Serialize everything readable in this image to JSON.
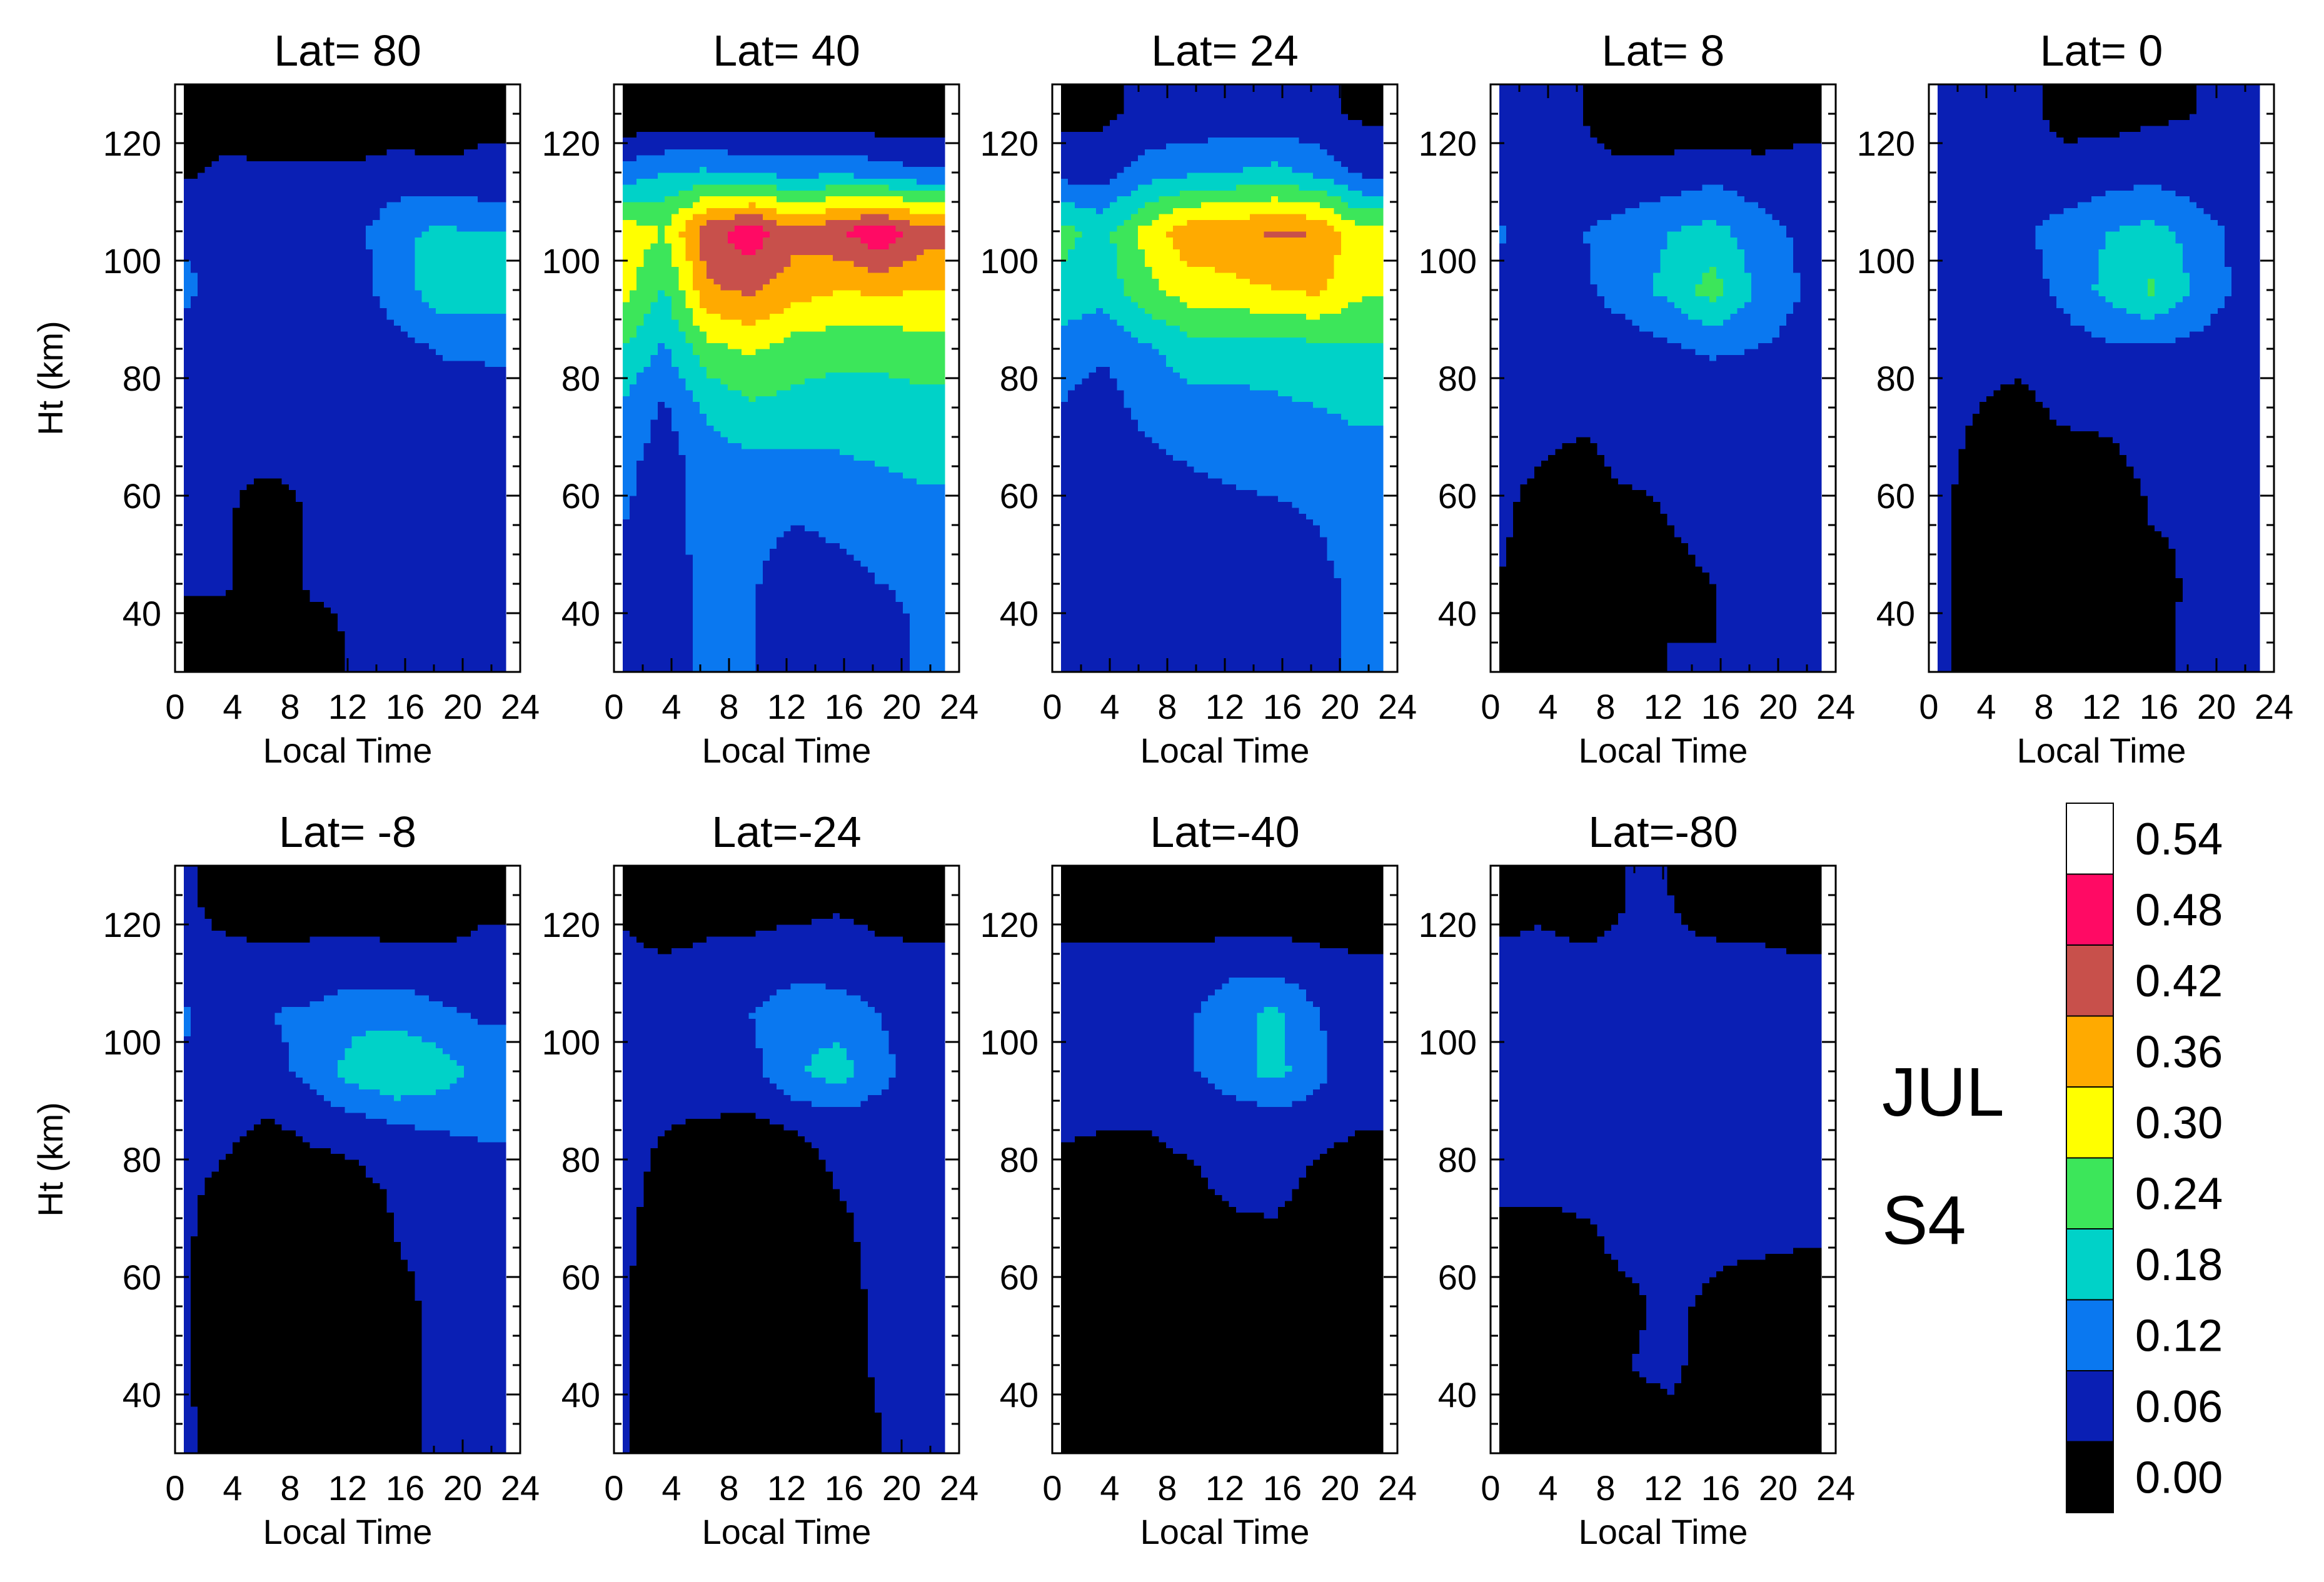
{
  "chart_data": {
    "type": "heatmap",
    "month_label": "JUL",
    "quantity_label": "S4",
    "xlabel": "Local Time",
    "ylabel": "Ht (km)",
    "xticks": [
      0,
      4,
      8,
      12,
      16,
      20,
      24
    ],
    "yticks": [
      40,
      60,
      80,
      100,
      120
    ],
    "xlim": [
      0,
      24
    ],
    "ylim": [
      30,
      130
    ],
    "x": [
      0.5,
      3.5,
      6.5,
      9.5,
      12.5,
      15.5,
      18.5,
      21.5
    ],
    "y": [
      35,
      45,
      55,
      65,
      75,
      85,
      95,
      105,
      115,
      125
    ],
    "colorbar": {
      "levels": [
        0.0,
        0.06,
        0.12,
        0.18,
        0.24,
        0.3,
        0.36,
        0.42,
        0.48,
        0.54
      ],
      "labels": [
        "0.00",
        "0.06",
        "0.12",
        "0.18",
        "0.24",
        "0.30",
        "0.36",
        "0.42",
        "0.48",
        "0.54"
      ],
      "colors": [
        "#000000",
        "#0a1fb4",
        "#0a78f0",
        "#00d2c8",
        "#3ce65a",
        "#ffff00",
        "#ffaa00",
        "#c8504b",
        "#ff0a64",
        "#ffffff"
      ]
    },
    "panels": [
      {
        "title": "Lat= 80",
        "z": [
          [
            0.01,
            0.03,
            0.01,
            0.03,
            0.07,
            0.07,
            0.07,
            0.07
          ],
          [
            0.07,
            0.07,
            0.01,
            0.07,
            0.07,
            0.07,
            0.07,
            0.07
          ],
          [
            0.07,
            0.07,
            0.01,
            0.07,
            0.07,
            0.07,
            0.07,
            0.07
          ],
          [
            0.07,
            0.07,
            0.07,
            0.07,
            0.07,
            0.07,
            0.07,
            0.07
          ],
          [
            0.07,
            0.07,
            0.07,
            0.07,
            0.07,
            0.07,
            0.07,
            0.09
          ],
          [
            0.08,
            0.07,
            0.07,
            0.07,
            0.07,
            0.09,
            0.13,
            0.13
          ],
          [
            0.14,
            0.09,
            0.07,
            0.07,
            0.09,
            0.16,
            0.21,
            0.22
          ],
          [
            0.11,
            0.08,
            0.07,
            0.07,
            0.1,
            0.17,
            0.19,
            0.18
          ],
          [
            0.05,
            0.07,
            0.07,
            0.07,
            0.07,
            0.08,
            0.07,
            0.07
          ],
          [
            0.01,
            0.04,
            0.02,
            0.01,
            0.02,
            0.03,
            0.03,
            0.05
          ]
        ]
      },
      {
        "title": "Lat= 40",
        "z": [
          [
            0.12,
            0.1,
            0.13,
            0.13,
            0.07,
            0.08,
            0.09,
            0.13
          ],
          [
            0.12,
            0.1,
            0.13,
            0.13,
            0.08,
            0.1,
            0.12,
            0.13
          ],
          [
            0.12,
            0.1,
            0.14,
            0.14,
            0.12,
            0.13,
            0.14,
            0.16
          ],
          [
            0.14,
            0.09,
            0.15,
            0.16,
            0.16,
            0.17,
            0.18,
            0.19
          ],
          [
            0.17,
            0.11,
            0.19,
            0.23,
            0.22,
            0.21,
            0.21,
            0.22
          ],
          [
            0.24,
            0.17,
            0.28,
            0.31,
            0.27,
            0.26,
            0.26,
            0.27
          ],
          [
            0.33,
            0.23,
            0.41,
            0.43,
            0.39,
            0.36,
            0.37,
            0.36
          ],
          [
            0.34,
            0.3,
            0.46,
            0.52,
            0.44,
            0.47,
            0.53,
            0.45
          ],
          [
            0.14,
            0.18,
            0.19,
            0.17,
            0.16,
            0.17,
            0.15,
            0.13
          ],
          [
            0.01,
            0.01,
            0.01,
            0.01,
            0.01,
            0.01,
            0.01,
            0.01
          ]
        ]
      },
      {
        "title": "Lat= 24",
        "z": [
          [
            0.08,
            0.08,
            0.1,
            0.11,
            0.08,
            0.08,
            0.11,
            0.13
          ],
          [
            0.07,
            0.08,
            0.09,
            0.11,
            0.07,
            0.07,
            0.11,
            0.13
          ],
          [
            0.07,
            0.08,
            0.09,
            0.09,
            0.1,
            0.1,
            0.12,
            0.14
          ],
          [
            0.08,
            0.08,
            0.1,
            0.12,
            0.13,
            0.14,
            0.15,
            0.16
          ],
          [
            0.12,
            0.09,
            0.14,
            0.16,
            0.16,
            0.17,
            0.18,
            0.19
          ],
          [
            0.15,
            0.13,
            0.17,
            0.21,
            0.21,
            0.21,
            0.22,
            0.23
          ],
          [
            0.23,
            0.2,
            0.28,
            0.33,
            0.34,
            0.36,
            0.37,
            0.31
          ],
          [
            0.26,
            0.22,
            0.32,
            0.4,
            0.41,
            0.43,
            0.42,
            0.31
          ],
          [
            0.1,
            0.09,
            0.15,
            0.17,
            0.18,
            0.2,
            0.16,
            0.11
          ],
          [
            0.04,
            0.05,
            0.07,
            0.07,
            0.08,
            0.07,
            0.07,
            0.05
          ]
        ]
      },
      {
        "title": "Lat=  8",
        "z": [
          [
            0.05,
            0.03,
            0.02,
            0.02,
            0.06,
            0.06,
            0.06,
            0.06
          ],
          [
            0.06,
            0.03,
            0.02,
            0.03,
            0.05,
            0.06,
            0.06,
            0.06
          ],
          [
            0.07,
            0.04,
            0.03,
            0.04,
            0.06,
            0.07,
            0.07,
            0.07
          ],
          [
            0.07,
            0.06,
            0.05,
            0.07,
            0.07,
            0.07,
            0.07,
            0.07
          ],
          [
            0.07,
            0.07,
            0.07,
            0.07,
            0.07,
            0.07,
            0.07,
            0.08
          ],
          [
            0.09,
            0.07,
            0.08,
            0.09,
            0.11,
            0.13,
            0.12,
            0.1
          ],
          [
            0.11,
            0.07,
            0.11,
            0.15,
            0.2,
            0.27,
            0.17,
            0.12
          ],
          [
            0.13,
            0.08,
            0.12,
            0.15,
            0.18,
            0.2,
            0.15,
            0.11
          ],
          [
            0.08,
            0.07,
            0.07,
            0.07,
            0.08,
            0.1,
            0.08,
            0.07
          ],
          [
            0.07,
            0.06,
            0.06,
            0.03,
            0.02,
            0.01,
            0.02,
            0.05
          ]
        ]
      },
      {
        "title": "Lat=  0",
        "z": [
          [
            0.07,
            0.04,
            0.02,
            0.01,
            0.02,
            0.05,
            0.07,
            0.07
          ],
          [
            0.07,
            0.04,
            0.01,
            0.01,
            0.02,
            0.04,
            0.07,
            0.07
          ],
          [
            0.07,
            0.04,
            0.02,
            0.02,
            0.03,
            0.06,
            0.07,
            0.07
          ],
          [
            0.07,
            0.05,
            0.03,
            0.04,
            0.05,
            0.07,
            0.07,
            0.07
          ],
          [
            0.07,
            0.06,
            0.05,
            0.07,
            0.07,
            0.07,
            0.07,
            0.07
          ],
          [
            0.07,
            0.07,
            0.07,
            0.09,
            0.11,
            0.11,
            0.1,
            0.08
          ],
          [
            0.08,
            0.07,
            0.09,
            0.14,
            0.2,
            0.25,
            0.17,
            0.11
          ],
          [
            0.12,
            0.07,
            0.11,
            0.15,
            0.18,
            0.2,
            0.16,
            0.1
          ],
          [
            0.07,
            0.07,
            0.07,
            0.07,
            0.09,
            0.1,
            0.08,
            0.07
          ],
          [
            0.07,
            0.07,
            0.07,
            0.05,
            0.04,
            0.05,
            0.06,
            0.07
          ]
        ]
      },
      {
        "title": "Lat= -8",
        "z": [
          [
            0.07,
            0.04,
            0.01,
            0.01,
            0.02,
            0.05,
            0.07,
            0.07
          ],
          [
            0.07,
            0.02,
            0.01,
            0.01,
            0.02,
            0.05,
            0.07,
            0.07
          ],
          [
            0.07,
            0.02,
            0.01,
            0.01,
            0.02,
            0.05,
            0.07,
            0.07
          ],
          [
            0.07,
            0.03,
            0.01,
            0.01,
            0.02,
            0.06,
            0.07,
            0.07
          ],
          [
            0.07,
            0.05,
            0.01,
            0.03,
            0.04,
            0.07,
            0.07,
            0.07
          ],
          [
            0.07,
            0.07,
            0.05,
            0.07,
            0.08,
            0.11,
            0.12,
            0.13
          ],
          [
            0.12,
            0.08,
            0.1,
            0.14,
            0.21,
            0.24,
            0.21,
            0.16
          ],
          [
            0.13,
            0.07,
            0.12,
            0.13,
            0.16,
            0.16,
            0.13,
            0.11
          ],
          [
            0.07,
            0.07,
            0.07,
            0.07,
            0.07,
            0.07,
            0.07,
            0.07
          ],
          [
            0.07,
            0.04,
            0.02,
            0.03,
            0.04,
            0.02,
            0.02,
            0.05
          ]
        ]
      },
      {
        "title": "Lat=-24",
        "z": [
          [
            0.07,
            0.01,
            0.01,
            0.01,
            0.01,
            0.01,
            0.06,
            0.07
          ],
          [
            0.07,
            0.02,
            0.01,
            0.01,
            0.01,
            0.03,
            0.07,
            0.07
          ],
          [
            0.07,
            0.02,
            0.01,
            0.01,
            0.01,
            0.04,
            0.07,
            0.07
          ],
          [
            0.07,
            0.04,
            0.02,
            0.01,
            0.03,
            0.05,
            0.07,
            0.07
          ],
          [
            0.07,
            0.05,
            0.03,
            0.02,
            0.04,
            0.06,
            0.07,
            0.07
          ],
          [
            0.07,
            0.06,
            0.05,
            0.04,
            0.06,
            0.07,
            0.08,
            0.07
          ],
          [
            0.11,
            0.08,
            0.1,
            0.1,
            0.17,
            0.21,
            0.14,
            0.09
          ],
          [
            0.12,
            0.07,
            0.1,
            0.12,
            0.16,
            0.15,
            0.12,
            0.08
          ],
          [
            0.07,
            0.06,
            0.07,
            0.07,
            0.08,
            0.08,
            0.07,
            0.07
          ],
          [
            0.05,
            0.02,
            0.03,
            0.04,
            0.04,
            0.05,
            0.04,
            0.02
          ]
        ]
      },
      {
        "title": "Lat=-40",
        "z": [
          [
            0.01,
            0.01,
            0.01,
            0.01,
            0.01,
            0.01,
            0.01,
            0.01
          ],
          [
            0.01,
            0.01,
            0.01,
            0.01,
            0.01,
            0.01,
            0.01,
            0.01
          ],
          [
            0.01,
            0.01,
            0.01,
            0.01,
            0.02,
            0.02,
            0.01,
            0.01
          ],
          [
            0.01,
            0.01,
            0.02,
            0.03,
            0.04,
            0.05,
            0.02,
            0.01
          ],
          [
            0.03,
            0.02,
            0.04,
            0.05,
            0.07,
            0.07,
            0.05,
            0.03
          ],
          [
            0.07,
            0.06,
            0.06,
            0.07,
            0.07,
            0.07,
            0.07,
            0.06
          ],
          [
            0.08,
            0.07,
            0.07,
            0.11,
            0.16,
            0.2,
            0.14,
            0.07
          ],
          [
            0.09,
            0.1,
            0.07,
            0.11,
            0.17,
            0.19,
            0.12,
            0.07
          ],
          [
            0.07,
            0.07,
            0.07,
            0.07,
            0.08,
            0.08,
            0.07,
            0.06
          ],
          [
            0.01,
            0.01,
            0.01,
            0.01,
            0.01,
            0.01,
            0.01,
            0.01
          ]
        ]
      },
      {
        "title": "Lat=-80",
        "z": [
          [
            0.04,
            0.01,
            0.05,
            0.04,
            0.05,
            0.03,
            0.02,
            0.01
          ],
          [
            0.02,
            0.03,
            0.01,
            0.06,
            0.07,
            0.04,
            0.03,
            0.01
          ],
          [
            0.03,
            0.01,
            0.04,
            0.05,
            0.07,
            0.05,
            0.01,
            0.03
          ],
          [
            0.04,
            0.03,
            0.05,
            0.07,
            0.07,
            0.07,
            0.07,
            0.06
          ],
          [
            0.07,
            0.07,
            0.07,
            0.07,
            0.07,
            0.07,
            0.07,
            0.07
          ],
          [
            0.07,
            0.07,
            0.07,
            0.07,
            0.07,
            0.07,
            0.07,
            0.07
          ],
          [
            0.07,
            0.07,
            0.07,
            0.07,
            0.07,
            0.07,
            0.07,
            0.07
          ],
          [
            0.07,
            0.07,
            0.07,
            0.07,
            0.07,
            0.07,
            0.07,
            0.07
          ],
          [
            0.07,
            0.07,
            0.07,
            0.07,
            0.07,
            0.07,
            0.07,
            0.06
          ],
          [
            0.03,
            0.05,
            0.02,
            0.06,
            0.06,
            0.03,
            0.02,
            0.01
          ]
        ]
      }
    ]
  }
}
